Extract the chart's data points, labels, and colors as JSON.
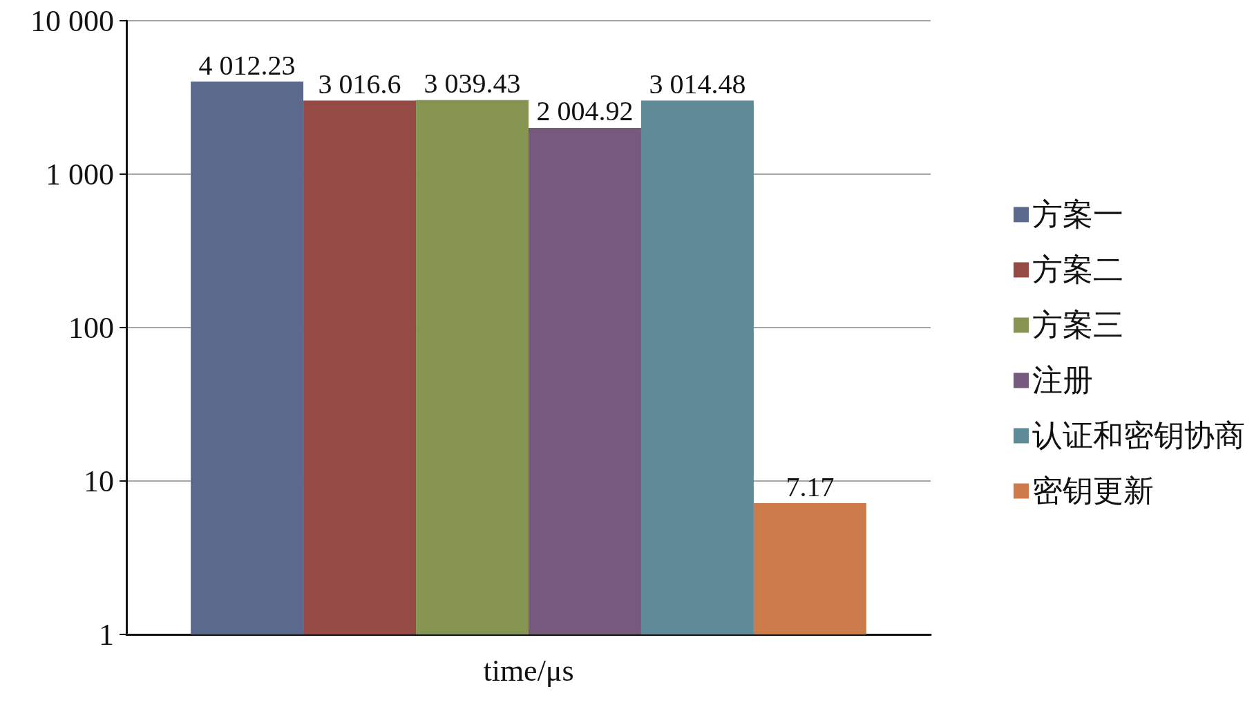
{
  "chart_data": {
    "type": "bar",
    "xlabel": "time/μs",
    "categories": [
      null
    ],
    "series": [
      {
        "name": "方案一",
        "color": "#5b6a8c",
        "values": [
          4012.23
        ],
        "value_labels": [
          "4 012.23"
        ]
      },
      {
        "name": "方案二",
        "color": "#964a46",
        "values": [
          3016.6
        ],
        "value_labels": [
          "3 016.6"
        ]
      },
      {
        "name": "方案三",
        "color": "#879553",
        "values": [
          3039.43
        ],
        "value_labels": [
          "3 039.43"
        ]
      },
      {
        "name": "注册",
        "color": "#76597d",
        "values": [
          2004.92
        ],
        "value_labels": [
          "2 004.92"
        ]
      },
      {
        "name": "认证和密钥协商",
        "color": "#5f8a97",
        "values": [
          3014.48
        ],
        "value_labels": [
          "3 014.48"
        ]
      },
      {
        "name": "密钥更新",
        "color": "#cd7b4a",
        "values": [
          7.17
        ],
        "value_labels": [
          "7.17"
        ]
      }
    ],
    "log": true,
    "ylim": [
      1,
      10000
    ],
    "yticks": [
      1,
      10,
      100,
      {
        "value": 1000,
        "label": "1 000"
      },
      {
        "value": 10000,
        "label": "10 000"
      }
    ],
    "grid": "y",
    "legend": "right"
  }
}
